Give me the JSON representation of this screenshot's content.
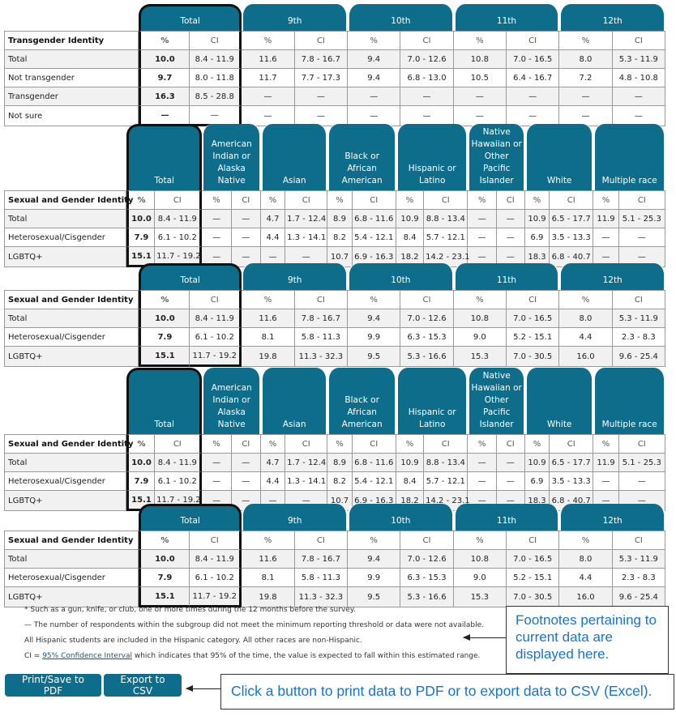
{
  "colors": {
    "header": "#0e6d8a",
    "link": "#0e5a8a",
    "callout_text": "#1a73c6"
  },
  "tables": [
    {
      "kind": "grade",
      "row_header": "Transgender Identity",
      "groups": [
        "Total",
        "9th",
        "10th",
        "11th",
        "12th"
      ],
      "sub": [
        "%",
        "CI"
      ],
      "rows": [
        {
          "label": "Total",
          "values": [
            "10.0",
            "8.4 - 11.9",
            "11.6",
            "7.8 - 16.7",
            "9.4",
            "7.0 - 12.6",
            "10.8",
            "7.0 - 16.5",
            "8.0",
            "5.3 - 11.9"
          ]
        },
        {
          "label": "Not transgender",
          "values": [
            "9.7",
            "8.0 - 11.8",
            "11.7",
            "7.7 - 17.3",
            "9.4",
            "6.8 - 13.0",
            "10.5",
            "6.4 - 16.7",
            "7.2",
            "4.8 - 10.8"
          ]
        },
        {
          "label": "Transgender",
          "values": [
            "16.3",
            "8.5 - 28.8",
            "—",
            "—",
            "—",
            "—",
            "—",
            "—",
            "—",
            "—"
          ]
        },
        {
          "label": "Not sure",
          "values": [
            "—",
            "—",
            "—",
            "—",
            "—",
            "—",
            "—",
            "—",
            "—",
            "—"
          ]
        }
      ]
    },
    {
      "kind": "race",
      "row_header": "Sexual and Gender Identity",
      "groups": [
        "Total",
        "American Indian or Alaska Native",
        "Asian",
        "Black or African American",
        "Hispanic or Latino",
        "Native Hawaiian or Other Pacific Islander",
        "White",
        "Multiple race"
      ],
      "sub": [
        "%",
        "CI"
      ],
      "rows": [
        {
          "label": "Total",
          "values": [
            "10.0",
            "8.4 - 11.9",
            "—",
            "—",
            "4.7",
            "1.7 - 12.4",
            "8.9",
            "6.8 - 11.6",
            "10.9",
            "8.8 - 13.4",
            "—",
            "—",
            "10.9",
            "6.5 - 17.7",
            "11.9",
            "5.1 - 25.3"
          ]
        },
        {
          "label": "Heterosexual/Cisgender",
          "values": [
            "7.9",
            "6.1 - 10.2",
            "—",
            "—",
            "4.4",
            "1.3 - 14.1",
            "8.2",
            "5.4 - 12.1",
            "8.4",
            "5.7 - 12.1",
            "—",
            "—",
            "6.9",
            "3.5 - 13.3",
            "—",
            "—"
          ]
        },
        {
          "label": "LGBTQ+",
          "values": [
            "15.1",
            "11.7 - 19.2",
            "—",
            "—",
            "—",
            "—",
            "10.7",
            "6.9 - 16.3",
            "18.2",
            "14.2 - 23.1",
            "—",
            "—",
            "18.3",
            "6.8 - 40.7",
            "—",
            "—"
          ]
        }
      ]
    },
    {
      "kind": "grade",
      "row_header": "Sexual and Gender Identity",
      "groups": [
        "Total",
        "9th",
        "10th",
        "11th",
        "12th"
      ],
      "sub": [
        "%",
        "CI"
      ],
      "rows": [
        {
          "label": "Total",
          "values": [
            "10.0",
            "8.4 - 11.9",
            "11.6",
            "7.8 - 16.7",
            "9.4",
            "7.0 - 12.6",
            "10.8",
            "7.0 - 16.5",
            "8.0",
            "5.3 - 11.9"
          ]
        },
        {
          "label": "Heterosexual/Cisgender",
          "values": [
            "7.9",
            "6.1 - 10.2",
            "8.1",
            "5.8 - 11.3",
            "9.9",
            "6.3 - 15.3",
            "9.0",
            "5.2 - 15.1",
            "4.4",
            "2.3 - 8.3"
          ]
        },
        {
          "label": "LGBTQ+",
          "values": [
            "15.1",
            "11.7 - 19.2",
            "19.8",
            "11.3 - 32.3",
            "9.5",
            "5.3 - 16.6",
            "15.3",
            "7.0 - 30.5",
            "16.0",
            "9.6 - 25.4"
          ]
        }
      ]
    },
    {
      "kind": "race",
      "row_header": "Sexual and Gender Identity",
      "groups": [
        "Total",
        "American Indian or Alaska Native",
        "Asian",
        "Black or African American",
        "Hispanic or Latino",
        "Native Hawaiian or Other Pacific Islander",
        "White",
        "Multiple race"
      ],
      "sub": [
        "%",
        "CI"
      ],
      "rows": [
        {
          "label": "Total",
          "values": [
            "10.0",
            "8.4 - 11.9",
            "—",
            "—",
            "4.7",
            "1.7 - 12.4",
            "8.9",
            "6.8 - 11.6",
            "10.9",
            "8.8 - 13.4",
            "—",
            "—",
            "10.9",
            "6.5 - 17.7",
            "11.9",
            "5.1 - 25.3"
          ]
        },
        {
          "label": "Heterosexual/Cisgender",
          "values": [
            "7.9",
            "6.1 - 10.2",
            "—",
            "—",
            "4.4",
            "1.3 - 14.1",
            "8.2",
            "5.4 - 12.1",
            "8.4",
            "5.7 - 12.1",
            "—",
            "—",
            "6.9",
            "3.5 - 13.3",
            "—",
            "—"
          ]
        },
        {
          "label": "LGBTQ+",
          "values": [
            "15.1",
            "11.7 - 19.2",
            "—",
            "—",
            "—",
            "—",
            "10.7",
            "6.9 - 16.3",
            "18.2",
            "14.2 - 23.1",
            "—",
            "—",
            "18.3",
            "6.8 - 40.7",
            "—",
            "—"
          ]
        }
      ]
    },
    {
      "kind": "grade",
      "row_header": "Sexual and Gender Identity",
      "groups": [
        "Total",
        "9th",
        "10th",
        "11th",
        "12th"
      ],
      "sub": [
        "%",
        "CI"
      ],
      "rows": [
        {
          "label": "Total",
          "values": [
            "10.0",
            "8.4 - 11.9",
            "11.6",
            "7.8 - 16.7",
            "9.4",
            "7.0 - 12.6",
            "10.8",
            "7.0 - 16.5",
            "8.0",
            "5.3 - 11.9"
          ]
        },
        {
          "label": "Heterosexual/Cisgender",
          "values": [
            "7.9",
            "6.1 - 10.2",
            "8.1",
            "5.8 - 11.3",
            "9.9",
            "6.3 - 15.3",
            "9.0",
            "5.2 - 15.1",
            "4.4",
            "2.3 - 8.3"
          ]
        },
        {
          "label": "LGBTQ+",
          "values": [
            "15.1",
            "11.7 - 19.2",
            "19.8",
            "11.3 - 32.3",
            "9.5",
            "5.3 - 16.6",
            "15.3",
            "7.0 - 30.5",
            "16.0",
            "9.6 - 25.4"
          ]
        }
      ]
    }
  ],
  "footnotes": {
    "weapon": "* Such as a gun, knife, or club, one or more times during the 12 months before the survey.",
    "dash": "— The number of respondents within the subgroup did not meet the minimum reporting threshold or data were not available.",
    "hispanic": "All Hispanic students are included in the Hispanic category. All other races are non-Hispanic.",
    "ci_prefix": "CI = ",
    "ci_link": "95% Confidence Interval",
    "ci_suffix": " which indicates that 95% of the time, the value is expected to fall within this estimated range."
  },
  "buttons": {
    "pdf": "Print/Save to PDF",
    "csv": "Export to CSV"
  },
  "callouts": {
    "footnotes": "Footnotes pertaining to current data are displayed here.",
    "buttons": "Click a button to print data to PDF or to export data to CSV (Excel)."
  }
}
